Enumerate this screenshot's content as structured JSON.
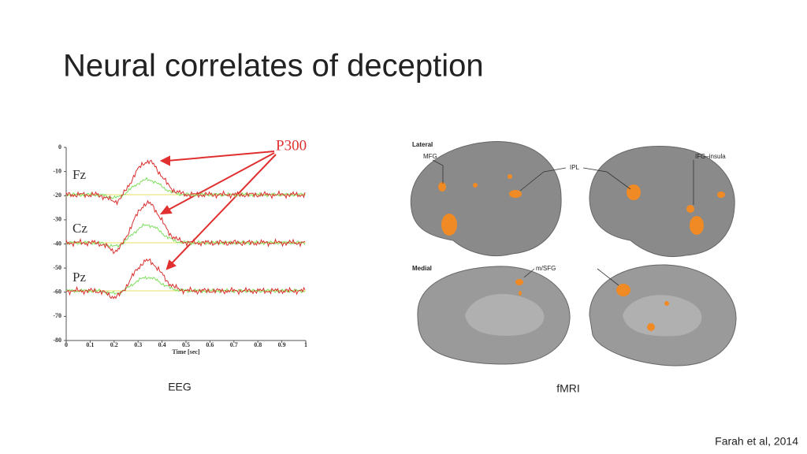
{
  "slide": {
    "title": "Neural correlates of deception",
    "eeg": {
      "yticks": [
        0,
        -10,
        -20,
        -30,
        -40,
        -50,
        -60,
        -70,
        -80
      ],
      "ylim": [
        0,
        -80
      ],
      "xticks": [
        0,
        0.1,
        0.2,
        0.3,
        0.4,
        0.5,
        0.6,
        0.7,
        0.8,
        0.9,
        1
      ],
      "xlim": [
        0,
        1
      ],
      "x_label": "Time [sec]",
      "channels": [
        "Fz",
        "Cz",
        "Pz"
      ],
      "annotation": "P300",
      "caption": "EEG"
    },
    "fmri": {
      "lateral": "Lateral",
      "medial": "Medial",
      "regions": [
        "MFG",
        "IPL",
        "IFG–insula",
        "m/SFG"
      ],
      "caption": "fMRI"
    },
    "citation": "Farah et al, 2014"
  }
}
